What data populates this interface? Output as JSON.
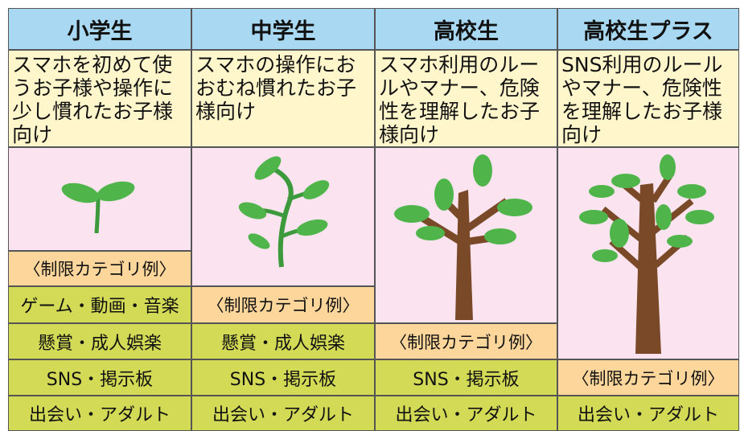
{
  "columns": [
    {
      "title": "小学生",
      "description": "スマホを初めて使うお子様や操作に少し慣れたお子様向け",
      "label": "〈制限カテゴリ例〉",
      "categories": [
        "ゲーム・動画・音楽",
        "懸賞・成人娯楽",
        "SNS・掲示板",
        "出会い・アダルト"
      ]
    },
    {
      "title": "中学生",
      "description": "スマホの操作におおむね慣れたお子様向け",
      "label": "〈制限カテゴリ例〉",
      "categories": [
        "懸賞・成人娯楽",
        "SNS・掲示板",
        "出会い・アダルト"
      ]
    },
    {
      "title": "高校生",
      "description": "スマホ利用のルールやマナー、危険性を理解したお子様向け",
      "label": "〈制限カテゴリ例〉",
      "categories": [
        "SNS・掲示板",
        "出会い・アダルト"
      ]
    },
    {
      "title": "高校生プラス",
      "description": "SNS利用のルールやマナー、危険性を理解したお子様向け",
      "label": "〈制限カテゴリ例〉",
      "categories": [
        "出会い・アダルト"
      ]
    }
  ]
}
